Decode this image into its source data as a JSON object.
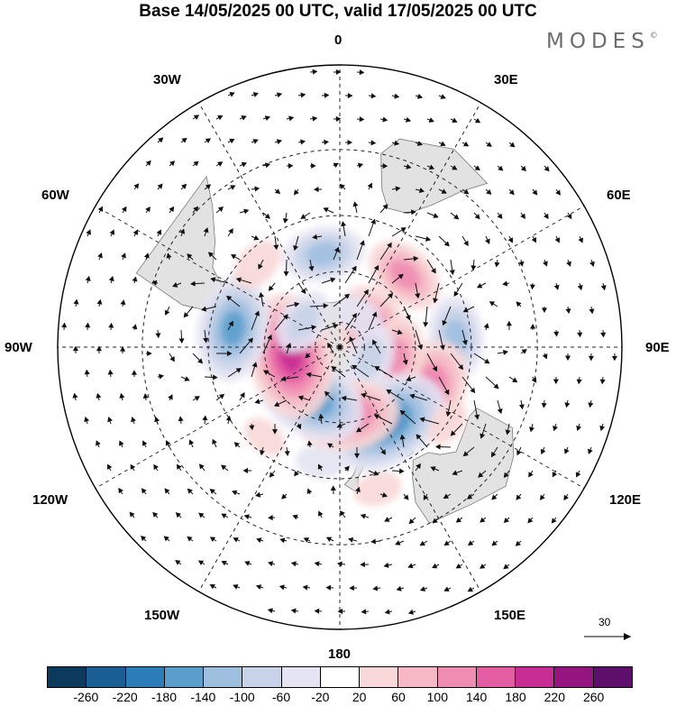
{
  "title": "Base 14/05/2025 00 UTC, valid 17/05/2025 00 UTC",
  "brand": "MODES",
  "brand_mark": "©",
  "projection": "south-polar-stereographic",
  "longitude_labels": {
    "top": "0",
    "bottom": "180",
    "left": "90W",
    "right": "90E",
    "upper_left_1": "30W",
    "upper_left_2": "60W",
    "lower_left_1": "120W",
    "lower_left_2": "150W",
    "upper_right_1": "30E",
    "upper_right_2": "60E",
    "lower_right_1": "120E",
    "lower_right_2": "150E"
  },
  "reference_vector": "30",
  "colorbar": {
    "colors": [
      "#0b3a5c",
      "#195f94",
      "#2b7db8",
      "#5a9fcc",
      "#9fbfdf",
      "#c8d2e8",
      "#e4e4f2",
      "#ffffff",
      "#f8d8d8",
      "#f5b8c4",
      "#ef8cb2",
      "#e45da3",
      "#c82d93",
      "#94157f",
      "#5e0f6b"
    ],
    "tick_labels": [
      "-260",
      "-220",
      "-180",
      "-140",
      "-100",
      "-60",
      "-20",
      "20",
      "60",
      "100",
      "140",
      "180",
      "220",
      "260"
    ]
  },
  "anomalies": [
    {
      "lon": 70,
      "lat": -75,
      "value": 150
    },
    {
      "lon": 42,
      "lat": -52,
      "value": 110
    },
    {
      "lon": 85,
      "lat": -45,
      "value": -110
    },
    {
      "lon": 118,
      "lat": -52,
      "value": 170
    },
    {
      "lon": 100,
      "lat": -67,
      "value": 110
    },
    {
      "lon": 110,
      "lat": -77,
      "value": -80
    },
    {
      "lon": 148,
      "lat": -55,
      "value": -200
    },
    {
      "lon": 175,
      "lat": -63,
      "value": 160
    },
    {
      "lon": -148,
      "lat": -67,
      "value": -180
    },
    {
      "lon": -100,
      "lat": -70,
      "value": 200
    },
    {
      "lon": -80,
      "lat": -48,
      "value": -160
    },
    {
      "lon": -55,
      "lat": -72,
      "value": -80
    },
    {
      "lon": -10,
      "lat": -53,
      "value": -110
    },
    {
      "lon": -45,
      "lat": -45,
      "value": 55
    },
    {
      "lon": 125,
      "lat": -40,
      "value": 40
    },
    {
      "lon": -170,
      "lat": -45,
      "value": -40
    },
    {
      "lon": 165,
      "lat": -35,
      "value": 40
    },
    {
      "lon": 30,
      "lat": -75,
      "value": -45
    },
    {
      "lon": -140,
      "lat": -45,
      "value": 35
    }
  ]
}
